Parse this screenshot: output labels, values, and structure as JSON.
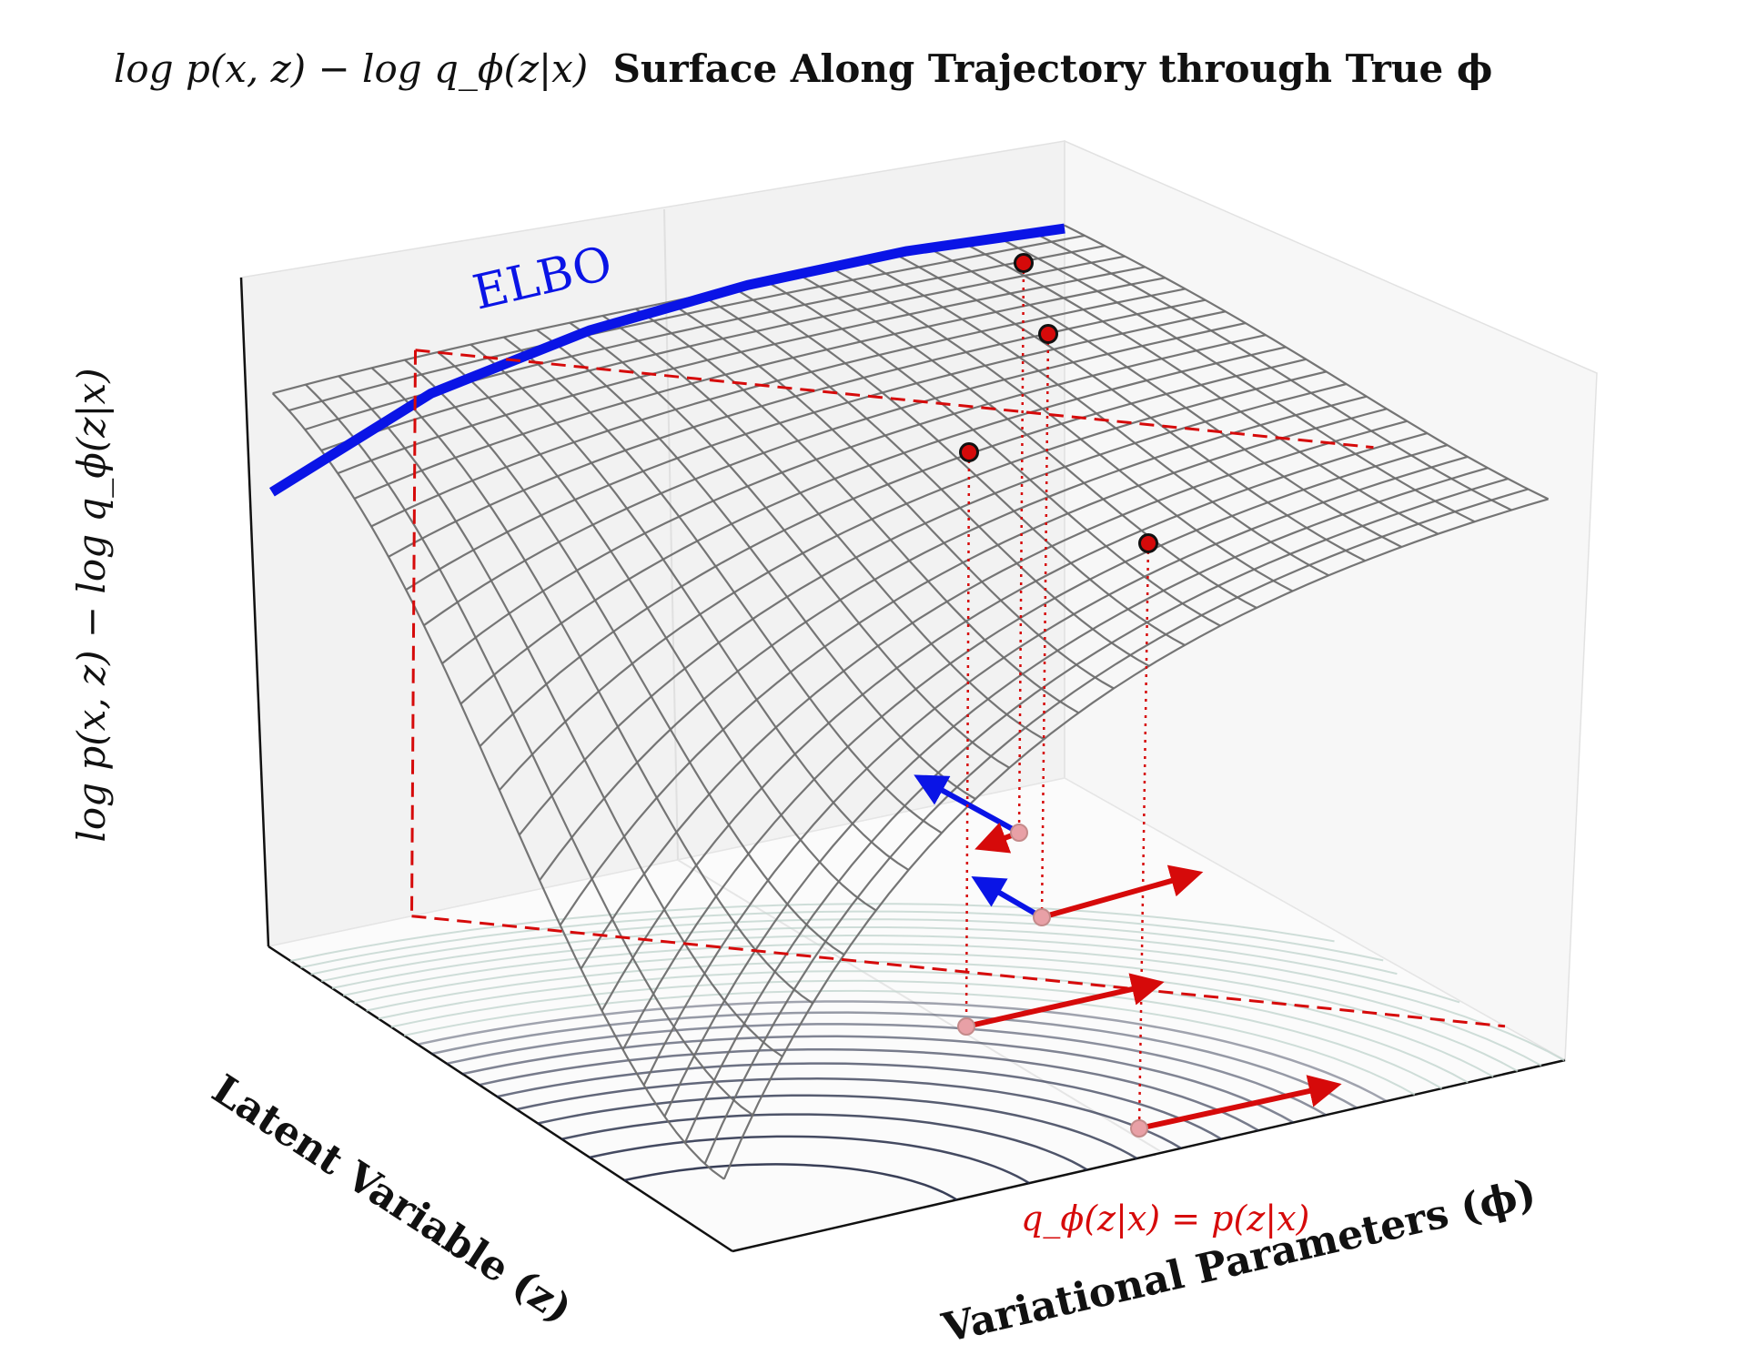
{
  "figure": {
    "title_math": "log p(x, z) − log q_ϕ(z|x)",
    "title_text": "Surface Along Trajectory through True ϕ"
  },
  "chart_data": {
    "type": "surface3d",
    "title": "log p(x, z) − log q_ϕ(z|x) Surface Along Trajectory through True ϕ",
    "zlabel": "log p(x, z) − log q_ϕ(z|x)",
    "xlabel": "Variational Parameters (ϕ)",
    "ylabel": "Latent Variable (z)",
    "grid": true,
    "colors": {
      "elbo": "#0a14e6",
      "trajectory": "#d60a0a",
      "wire": "#6e6e6e",
      "contour_light": "#c3d6d0",
      "contour_dark": "#232a45"
    },
    "annotations": {
      "elbo_label": "ELBO",
      "equality_label": "q_ϕ(z|x) = p(z|x)"
    },
    "surface": {
      "phi_range": [
        0,
        1
      ],
      "z_range": [
        0,
        1
      ],
      "description_points": "gap surface, minimum near phi=0, z=0; flat maximum along z=1"
    },
    "elbo_curve": {
      "z": 1.0,
      "phi": [
        0.0,
        0.2,
        0.4,
        0.6,
        0.8,
        1.0
      ],
      "value": [
        0.78,
        0.9,
        0.96,
        0.99,
        1.0,
        0.99
      ]
    },
    "sample_points": [
      {
        "phi": 0.75,
        "z": 0.92,
        "value": 1.0,
        "gradient_blue": null,
        "gradient_red": -0.05
      },
      {
        "phi": 0.66,
        "z": 0.83,
        "value": 0.97,
        "gradient_blue": -0.2,
        "gradient_red": 0.2
      },
      {
        "phi": 0.48,
        "z": 0.62,
        "value": 0.9,
        "gradient_blue": null,
        "gradient_red": 0.3
      },
      {
        "phi": 0.63,
        "z": 0.38,
        "value": 0.92,
        "gradient_blue": null,
        "gradient_red": 0.35
      }
    ]
  }
}
